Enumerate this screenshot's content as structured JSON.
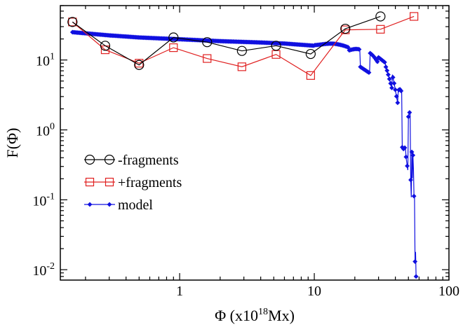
{
  "chart_data": {
    "type": "line",
    "scale": {
      "x": "log",
      "y": "log"
    },
    "xlim": [
      0.13,
      100
    ],
    "ylim": [
      0.0071,
      60
    ],
    "xlabel": {
      "main": "Φ (x10",
      "sup": "18",
      "tail": "Mx)"
    },
    "ylabel": "F(Φ)",
    "x_ticks": [
      {
        "value": 1,
        "label": "1"
      },
      {
        "value": 10,
        "label": "10"
      },
      {
        "value": 100,
        "label": "100"
      }
    ],
    "y_ticks": [
      {
        "value": 0.01,
        "base": "10",
        "exp": "-2"
      },
      {
        "value": 0.1,
        "base": "10",
        "exp": "-1"
      },
      {
        "value": 1,
        "base": "10",
        "exp": "0"
      },
      {
        "value": 10,
        "base": "10",
        "exp": "1"
      }
    ],
    "legend_position": "left-center",
    "series": [
      {
        "name": "-fragments",
        "color": "#000000",
        "marker": "circle",
        "points": [
          [
            0.16,
            35
          ],
          [
            0.28,
            16
          ],
          [
            0.5,
            8.5
          ],
          [
            0.9,
            21
          ],
          [
            1.6,
            18
          ],
          [
            2.9,
            13.5
          ],
          [
            5.2,
            16
          ],
          [
            9.4,
            12.2
          ],
          [
            17,
            28
          ],
          [
            31,
            42
          ]
        ]
      },
      {
        "name": "+fragments",
        "color": "#e02020",
        "marker": "square",
        "points": [
          [
            0.16,
            35
          ],
          [
            0.28,
            14
          ],
          [
            0.5,
            9
          ],
          [
            0.9,
            15
          ],
          [
            1.6,
            10.5
          ],
          [
            2.9,
            8
          ],
          [
            5.2,
            12
          ],
          [
            9.4,
            6
          ],
          [
            17,
            27
          ],
          [
            31,
            27.5
          ],
          [
            55,
            42
          ]
        ]
      },
      {
        "name": "model",
        "color": "#1010e0",
        "marker": "diamond",
        "points": [
          [
            0.16,
            25
          ],
          [
            0.3,
            22.5
          ],
          [
            0.5,
            21
          ],
          [
            1,
            19.8
          ],
          [
            2,
            18.6
          ],
          [
            4,
            17.8
          ],
          [
            6,
            17.2
          ],
          [
            10,
            16
          ],
          [
            14,
            14.5
          ],
          [
            18,
            12.5
          ],
          [
            22,
            10.5
          ],
          [
            26,
            9
          ],
          [
            30,
            7.5
          ],
          [
            34,
            6
          ],
          [
            38,
            4.5
          ],
          [
            42,
            3.0
          ],
          [
            45,
            2.0
          ],
          [
            48,
            1.2
          ],
          [
            50,
            0.8
          ],
          [
            52,
            0.45
          ],
          [
            53,
            0.25
          ],
          [
            54,
            0.12
          ],
          [
            55,
            0.06
          ],
          [
            56,
            0.02
          ],
          [
            57,
            0.008
          ]
        ]
      }
    ]
  }
}
